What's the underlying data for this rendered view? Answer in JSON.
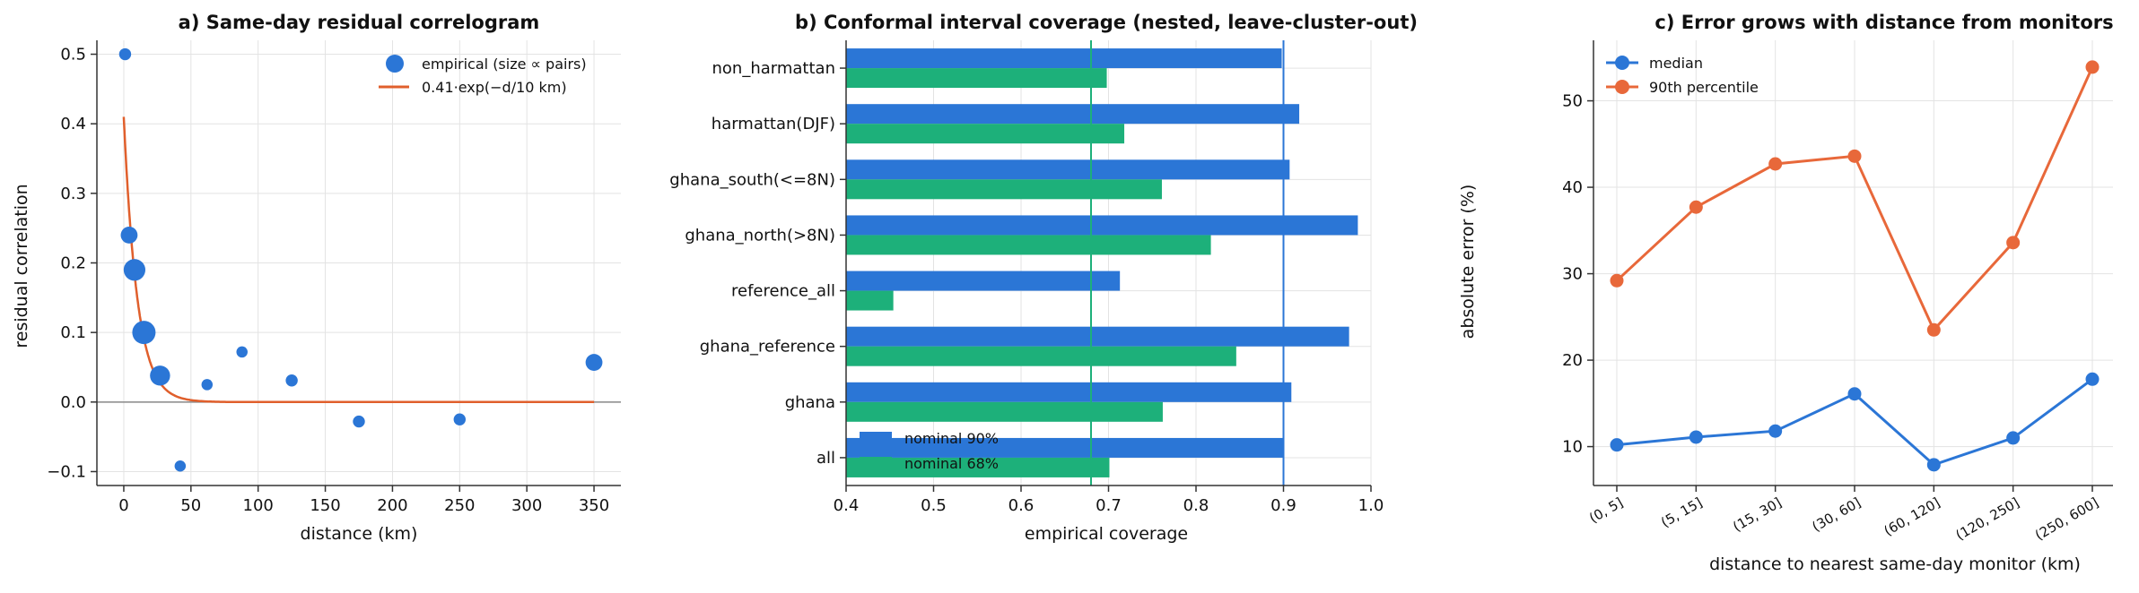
{
  "chart_data": [
    {
      "type": "scatter",
      "title": "a) Same-day residual correlogram",
      "xlabel": "distance (km)",
      "ylabel": "residual correlation",
      "xlim": [
        -20,
        370
      ],
      "ylim": [
        -0.12,
        0.52
      ],
      "xticks": [
        "0",
        "50",
        "100",
        "150",
        "200",
        "250",
        "300",
        "350"
      ],
      "yticks": [
        "−0.1",
        "0.0",
        "0.1",
        "0.2",
        "0.3",
        "0.4",
        "0.5"
      ],
      "grid": true,
      "legend_position": "top-right",
      "legend": [
        "empirical (size ∝ pairs)",
        "0.41·exp(−d/10 km)"
      ],
      "colors": {
        "empirical": "#2b76d6",
        "fit": "#e05f2c",
        "zero_line": "#888888"
      },
      "series": [
        {
          "name": "empirical (size ∝ pairs)",
          "x": [
            1,
            4,
            8,
            15,
            27,
            42,
            62,
            88,
            125,
            175,
            250,
            350
          ],
          "y": [
            0.5,
            0.24,
            0.19,
            0.1,
            0.038,
            -0.092,
            0.025,
            0.072,
            0.031,
            -0.028,
            -0.025,
            0.057
          ],
          "pairs_relative": [
            0.3,
            0.6,
            0.9,
            1.0,
            0.8,
            0.25,
            0.25,
            0.25,
            0.3,
            0.3,
            0.3,
            0.6
          ]
        },
        {
          "name": "0.41·exp(−d/10 km)",
          "amplitude": 0.41,
          "length_km": 10,
          "x_range": [
            0,
            350
          ]
        }
      ]
    },
    {
      "type": "bar",
      "orientation": "horizontal",
      "title": "b) Conformal interval coverage (nested, leave-cluster-out)",
      "xlabel": "empirical coverage",
      "xlim": [
        0.4,
        1.0
      ],
      "xticks": [
        "0.4",
        "0.5",
        "0.6",
        "0.7",
        "0.8",
        "0.9",
        "1.0"
      ],
      "grid": true,
      "legend_position": "bottom-left",
      "legend": [
        "nominal 90%",
        "nominal 68%"
      ],
      "colors": {
        "nominal90": "#2b76d6",
        "nominal68": "#1db07a"
      },
      "reference_lines": [
        0.9,
        0.68
      ],
      "categories": [
        "non_harmattan",
        "harmattan(DJF)",
        "ghana_south(<=8N)",
        "ghana_north(>8N)",
        "reference_all",
        "ghana_reference",
        "ghana",
        "all"
      ],
      "series": [
        {
          "name": "nominal 90%",
          "values": [
            0.898,
            0.918,
            0.907,
            0.985,
            0.713,
            0.975,
            0.909,
            0.901
          ]
        },
        {
          "name": "nominal 68%",
          "values": [
            0.698,
            0.718,
            0.761,
            0.817,
            0.454,
            0.846,
            0.762,
            0.701
          ]
        }
      ]
    },
    {
      "type": "line",
      "title": "c) Error grows with distance from monitors",
      "xlabel": "distance to nearest same-day monitor (km)",
      "ylabel": "absolute error (%)",
      "categories": [
        "(0, 5]",
        "(5, 15]",
        "(15, 30]",
        "(30, 60]",
        "(60, 120]",
        "(120, 250]",
        "(250, 600]"
      ],
      "ylim": [
        5.5,
        57
      ],
      "yticks": [
        "10",
        "20",
        "30",
        "40",
        "50"
      ],
      "grid": true,
      "legend_position": "top-left",
      "legend": [
        "median",
        "90th percentile"
      ],
      "colors": {
        "median": "#2b76d6",
        "p90": "#e8683a"
      },
      "series": [
        {
          "name": "median",
          "values": [
            10.2,
            11.1,
            11.8,
            16.1,
            7.9,
            11.0,
            17.8
          ]
        },
        {
          "name": "90th percentile",
          "values": [
            29.2,
            37.7,
            42.7,
            43.6,
            23.5,
            33.6,
            53.9
          ]
        }
      ]
    }
  ]
}
